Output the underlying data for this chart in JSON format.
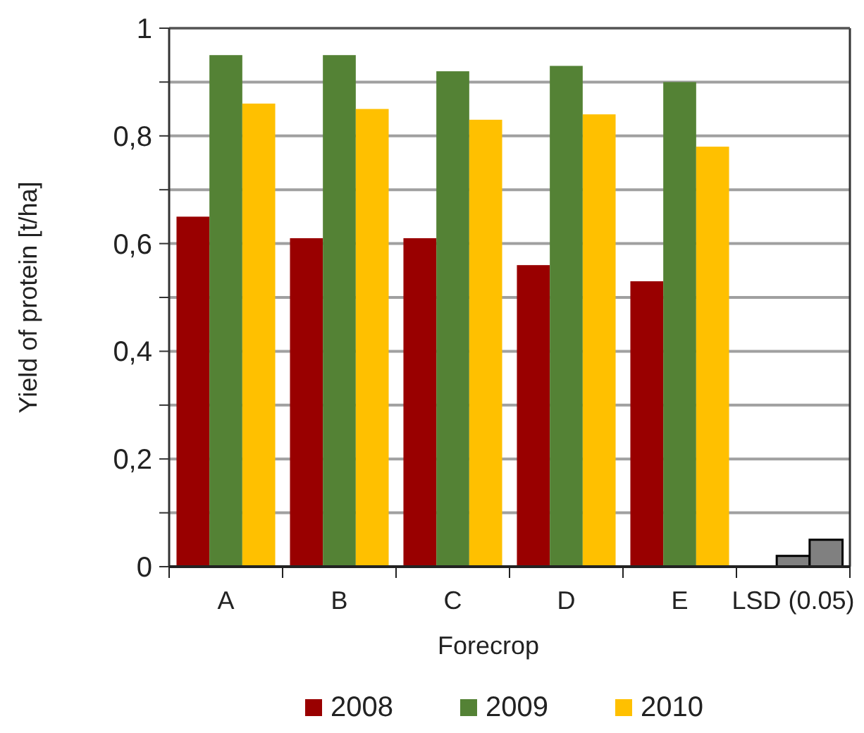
{
  "chart_data": {
    "type": "bar",
    "xlabel": "Forecrop",
    "ylabel": "Yield of protein [t/ha]",
    "categories": [
      "A",
      "B",
      "C",
      "D",
      "E",
      "LSD (0.05)"
    ],
    "series": [
      {
        "name": "2008",
        "color": "#990000",
        "values": [
          0.65,
          0.61,
          0.61,
          0.56,
          0.53,
          null
        ]
      },
      {
        "name": "2009",
        "color": "#548235",
        "colors": [
          "#548235",
          "#548235",
          "#548235",
          "#548235",
          "#548235",
          "#808080"
        ],
        "values": [
          0.95,
          0.95,
          0.92,
          0.93,
          0.9,
          0.02
        ]
      },
      {
        "name": "2010",
        "color": "#ffc000",
        "colors": [
          "#ffc000",
          "#ffc000",
          "#ffc000",
          "#ffc000",
          "#ffc000",
          "#808080"
        ],
        "values": [
          0.86,
          0.85,
          0.83,
          0.84,
          0.78,
          0.05
        ]
      }
    ],
    "ylim": [
      0,
      1
    ],
    "yticks": [
      0,
      {
        "value": 0.1,
        "label": null
      },
      {
        "value": 0.2,
        "label": "0,2"
      },
      {
        "value": 0.3,
        "label": null
      },
      {
        "value": 0.4,
        "label": "0,4"
      },
      {
        "value": 0.5,
        "label": null
      },
      {
        "value": 0.6,
        "label": "0,6"
      },
      {
        "value": 0.7,
        "label": null
      },
      {
        "value": 0.8,
        "label": "0,8"
      },
      {
        "value": 0.9,
        "label": null
      },
      1
    ],
    "grid": "y",
    "legend": "bottom"
  }
}
